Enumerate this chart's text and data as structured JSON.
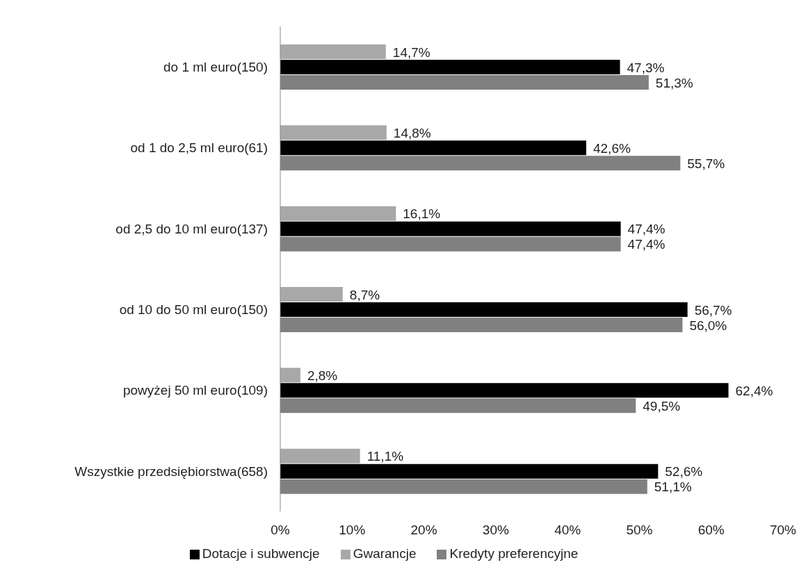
{
  "chart_data": {
    "type": "bar",
    "orientation": "horizontal",
    "categories": [
      "do 1 ml euro(150)",
      "od 1 do 2,5 ml euro(61)",
      "od 2,5 do 10 ml euro(137)",
      "od 10 do 50 ml euro(150)",
      "powyżej 50 ml euro(109)",
      "Wszystkie przedsiębiorstwa(658)"
    ],
    "series": [
      {
        "name": "Gwarancje",
        "color": "#a8a8a8",
        "values": [
          14.7,
          14.8,
          16.1,
          8.7,
          2.8,
          11.1
        ],
        "value_labels": [
          "14,7%",
          "14,8%",
          "16,1%",
          "8,7%",
          "2,8%",
          "11,1%"
        ]
      },
      {
        "name": "Dotacje i subwencje",
        "color": "#000000",
        "values": [
          47.3,
          42.6,
          47.4,
          56.7,
          62.4,
          52.6
        ],
        "value_labels": [
          "47,3%",
          "42,6%",
          "47,4%",
          "56,7%",
          "62,4%",
          "52,6%"
        ]
      },
      {
        "name": "Kredyty preferencyjne",
        "color": "#808080",
        "values": [
          51.3,
          55.7,
          47.4,
          56.0,
          49.5,
          51.1
        ],
        "value_labels": [
          "51,3%",
          "55,7%",
          "47,4%",
          "56,0%",
          "49,5%",
          "51,1%"
        ]
      }
    ],
    "xlim": [
      0,
      70
    ],
    "xticks": [
      {
        "value": 0,
        "label": "0%"
      },
      {
        "value": 10,
        "label": "10%"
      },
      {
        "value": 20,
        "label": "20%"
      },
      {
        "value": 30,
        "label": "30%"
      },
      {
        "value": 40,
        "label": "40%"
      },
      {
        "value": 50,
        "label": "50%"
      },
      {
        "value": 60,
        "label": "60%"
      },
      {
        "value": 70,
        "label": "70%"
      }
    ],
    "grid": false,
    "legend": "bottom"
  }
}
